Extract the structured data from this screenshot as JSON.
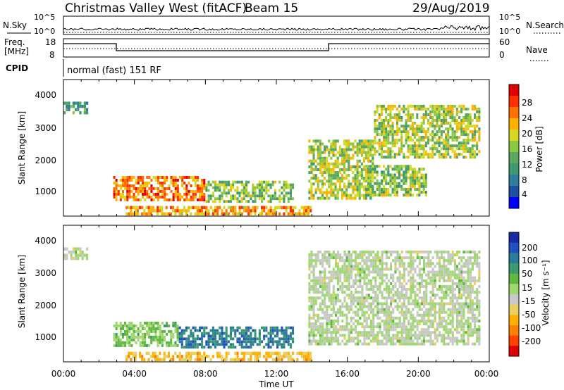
{
  "header": {
    "title": "Christmas Valley West (fitACF)",
    "beam": "Beam 15",
    "date": "29/Aug/2019"
  },
  "top_panels": {
    "nsky_label": "N.Sky",
    "nsearch_label": "N.Search",
    "scale_top": "10^5",
    "scale_bottom": "10^0",
    "freq_label": "Freq.",
    "freq_unit": "[MHz]",
    "freq_ticks": [
      "18",
      "8"
    ],
    "nave_label": "Nave",
    "nave_ticks": [
      "60",
      "0"
    ],
    "cpid_label": "CPID",
    "cpid_value": "normal (fast) 151 RF"
  },
  "x_axis": {
    "label": "Time UT",
    "ticks": [
      "00:00",
      "04:00",
      "08:00",
      "12:00",
      "16:00",
      "20:00",
      "00:00"
    ]
  },
  "power_panel": {
    "ylabel": "Slant Range [km]",
    "yticks": [
      "4000",
      "3000",
      "2000",
      "1000"
    ],
    "colorbar_label": "Power [dB]",
    "colorbar_ticks": [
      "28",
      "24",
      "20",
      "16",
      "12",
      "8",
      "4"
    ],
    "colors": [
      "#0000ff",
      "#1e4fa0",
      "#2e7d9a",
      "#3c9a6e",
      "#5aa860",
      "#8cc840",
      "#d8d820",
      "#ffb000",
      "#ff7000",
      "#ff3000",
      "#e00000"
    ]
  },
  "velocity_panel": {
    "ylabel": "Slant Range [km]",
    "yticks": [
      "4000",
      "3000",
      "2000",
      "1000"
    ],
    "colorbar_label": "Velocity [m s⁻¹]",
    "colorbar_ticks": [
      "200",
      "100",
      "50",
      "15",
      "-15",
      "-50",
      "-100",
      "-200"
    ],
    "colors": [
      "#1a2aa0",
      "#2050c0",
      "#2a7a9a",
      "#3a9a70",
      "#60b840",
      "#a0d870",
      "#c8c8c8",
      "#e8d060",
      "#ffb000",
      "#ff8000",
      "#ff4000",
      "#e00000"
    ]
  },
  "chart_data": [
    {
      "type": "heatmap",
      "title": "Christmas Valley West (fitACF) Beam 15 29/Aug/2019",
      "xlabel": "Time UT",
      "ylabel": "Slant Range [km]",
      "colorbar": "Power [dB]",
      "xlim": [
        "00:00",
        "24:00"
      ],
      "ylim": [
        180,
        4500
      ],
      "zlim": [
        0,
        30
      ],
      "regions": [
        {
          "t_start": 0.0,
          "t_end": 1.4,
          "r_min": 3400,
          "r_max": 3800,
          "power_db": 10
        },
        {
          "t_start": 2.8,
          "t_end": 8.0,
          "r_min": 650,
          "r_max": 1450,
          "power_db": 24
        },
        {
          "t_start": 8.0,
          "t_end": 13.0,
          "r_min": 600,
          "r_max": 1300,
          "power_db": 14
        },
        {
          "t_start": 3.5,
          "t_end": 14.0,
          "r_min": 200,
          "r_max": 500,
          "power_db": 22
        },
        {
          "t_start": 13.8,
          "t_end": 17.5,
          "r_min": 700,
          "r_max": 2600,
          "power_db": 16
        },
        {
          "t_start": 17.0,
          "t_end": 20.5,
          "r_min": 800,
          "r_max": 1800,
          "power_db": 14
        },
        {
          "t_start": 17.5,
          "t_end": 23.5,
          "r_min": 2000,
          "r_max": 3700,
          "power_db": 16
        }
      ]
    },
    {
      "type": "heatmap",
      "title": "",
      "xlabel": "Time UT",
      "ylabel": "Slant Range [km]",
      "colorbar": "Velocity [m s⁻¹]",
      "xlim": [
        "00:00",
        "24:00"
      ],
      "ylim": [
        180,
        4500
      ],
      "zlim": [
        -200,
        200
      ],
      "regions": [
        {
          "t_start": 0.0,
          "t_end": 1.4,
          "r_min": 3400,
          "r_max": 3800,
          "velocity": 0
        },
        {
          "t_start": 2.8,
          "t_end": 6.5,
          "r_min": 650,
          "r_max": 1450,
          "velocity": 40
        },
        {
          "t_start": 6.5,
          "t_end": 13.0,
          "r_min": 600,
          "r_max": 1300,
          "velocity": 120
        },
        {
          "t_start": 3.5,
          "t_end": 14.0,
          "r_min": 200,
          "r_max": 500,
          "velocity": -80
        },
        {
          "t_start": 13.8,
          "t_end": 23.5,
          "r_min": 700,
          "r_max": 3700,
          "velocity": 0
        }
      ]
    }
  ]
}
